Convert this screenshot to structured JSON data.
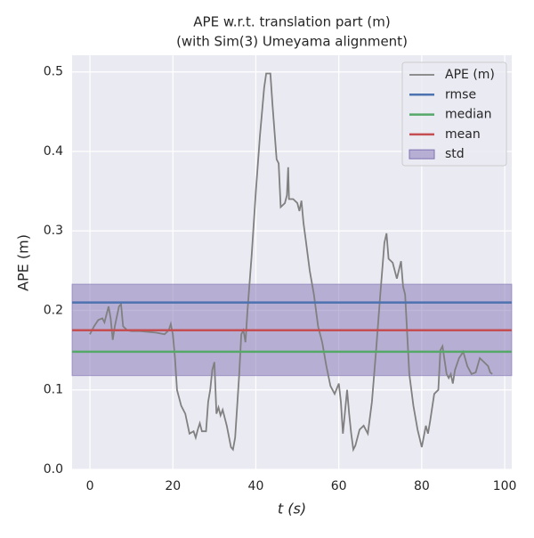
{
  "chart_data": {
    "type": "line",
    "title": "APE w.r.t. translation part (m)",
    "subtitle": "(with Sim(3) Umeyama alignment)",
    "xlabel": "t (s)",
    "ylabel": "APE (m)",
    "xlim": [
      -4.3,
      101.7
    ],
    "ylim": [
      0,
      0.521
    ],
    "xticks": [
      0,
      20,
      40,
      60,
      80,
      100
    ],
    "yticks": [
      {
        "value": 0,
        "label": "0.0"
      },
      0.1,
      0.2,
      0.3,
      0.4,
      0.5
    ],
    "grid": true,
    "legend": "upper right",
    "x": [
      0,
      1,
      2,
      3,
      3.5,
      4,
      4.5,
      5,
      5.5,
      6,
      7,
      7.5,
      8,
      9,
      10,
      12,
      14,
      16,
      18,
      19,
      19.5,
      20,
      20.5,
      21,
      22,
      23,
      24,
      25,
      25.5,
      26,
      26.5,
      27,
      28,
      28.5,
      29,
      29.5,
      30,
      30.5,
      31,
      31.5,
      32,
      33,
      34,
      34.5,
      35,
      36,
      36.5,
      37,
      37.5,
      38,
      39,
      40,
      41,
      42,
      42.5,
      43.5,
      44,
      45,
      45.5,
      46,
      47,
      47.5,
      47.8,
      48,
      49,
      50,
      50.5,
      51,
      51.5,
      52,
      53,
      54,
      55,
      56,
      57,
      58,
      59,
      60,
      60.5,
      61,
      62,
      62.5,
      63,
      63.5,
      64,
      65,
      66,
      67,
      68,
      69,
      70,
      71,
      71.5,
      72,
      73,
      74,
      75,
      75.5,
      76,
      77,
      78,
      79,
      80,
      81,
      81.5,
      82,
      83,
      84,
      84.5,
      85,
      86,
      86.5,
      87,
      87.5,
      88,
      89,
      90,
      91,
      92,
      93,
      94,
      95,
      96,
      96.5,
      97
    ],
    "series": [
      {
        "name": "APE (m)",
        "color": "#808080",
        "values": [
          0.17,
          0.18,
          0.188,
          0.19,
          0.185,
          0.195,
          0.205,
          0.19,
          0.163,
          0.18,
          0.205,
          0.208,
          0.18,
          0.175,
          0.174,
          0.174,
          0.173,
          0.172,
          0.17,
          0.175,
          0.183,
          0.17,
          0.14,
          0.1,
          0.08,
          0.07,
          0.045,
          0.048,
          0.04,
          0.05,
          0.058,
          0.048,
          0.048,
          0.085,
          0.1,
          0.125,
          0.135,
          0.07,
          0.078,
          0.068,
          0.075,
          0.055,
          0.028,
          0.025,
          0.04,
          0.12,
          0.17,
          0.175,
          0.16,
          0.2,
          0.27,
          0.35,
          0.42,
          0.48,
          0.498,
          0.498,
          0.46,
          0.39,
          0.385,
          0.33,
          0.335,
          0.345,
          0.38,
          0.34,
          0.34,
          0.335,
          0.325,
          0.338,
          0.31,
          0.29,
          0.25,
          0.22,
          0.18,
          0.16,
          0.13,
          0.105,
          0.095,
          0.108,
          0.085,
          0.045,
          0.1,
          0.07,
          0.045,
          0.025,
          0.03,
          0.05,
          0.055,
          0.045,
          0.085,
          0.15,
          0.22,
          0.285,
          0.297,
          0.265,
          0.26,
          0.24,
          0.262,
          0.23,
          0.22,
          0.12,
          0.08,
          0.05,
          0.028,
          0.055,
          0.045,
          0.06,
          0.095,
          0.1,
          0.15,
          0.155,
          0.12,
          0.115,
          0.12,
          0.108,
          0.125,
          0.14,
          0.148,
          0.13,
          0.12,
          0.122,
          0.14,
          0.135,
          0.13,
          0.122,
          0.12
        ]
      }
    ],
    "hlines": [
      {
        "name": "rmse",
        "color": "#4c72b0",
        "value": 0.21
      },
      {
        "name": "median",
        "color": "#55a868",
        "value": 0.148
      },
      {
        "name": "mean",
        "color": "#c44e52",
        "value": 0.175
      }
    ],
    "band": {
      "name": "std",
      "color": "#8172b3",
      "values": [
        0.118,
        0.233
      ]
    }
  }
}
